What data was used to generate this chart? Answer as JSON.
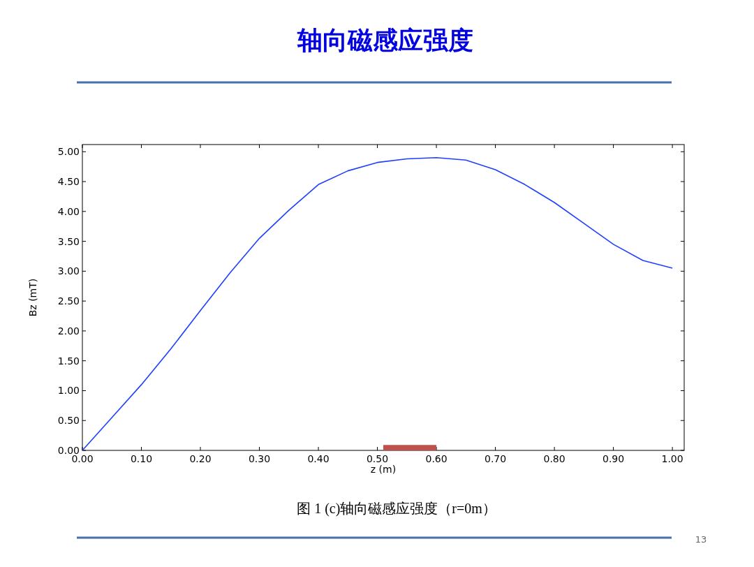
{
  "chart_data": {
    "type": "line",
    "title": "轴向磁感应强度",
    "xlabel": "z (m)",
    "ylabel": "Bz (mT)",
    "annotations": [
      "图 1  (c)轴向磁感应强度（r=0m）",
      "13"
    ],
    "x": [
      0,
      0.05,
      0.1,
      0.15,
      0.2,
      0.25,
      0.3,
      0.35,
      0.4,
      0.45,
      0.5,
      0.55,
      0.6,
      0.65,
      0.7,
      0.75,
      0.8,
      0.85,
      0.9,
      0.95,
      1.0
    ],
    "series": [
      {
        "color": "#1f3fff",
        "values": [
          0,
          0.55,
          1.1,
          1.7,
          2.34,
          2.97,
          3.55,
          4.02,
          4.45,
          4.68,
          4.82,
          4.88,
          4.9,
          4.86,
          4.7,
          4.45,
          4.15,
          3.8,
          3.45,
          3.18,
          3.05
        ]
      },
      {
        "type": "area",
        "color": "#c0504d",
        "x": [
          0.51,
          0.6
        ],
        "values": [
          0.09,
          0.09
        ]
      }
    ],
    "xlim": [
      0,
      1.02
    ],
    "ylim": [
      0,
      5.12
    ],
    "xticks": [
      {
        "value": 0,
        "label": "0.00"
      },
      {
        "value": 0.1,
        "label": "0.10"
      },
      {
        "value": 0.2,
        "label": "0.20"
      },
      {
        "value": 0.3,
        "label": "0.30"
      },
      {
        "value": 0.4,
        "label": "0.40"
      },
      {
        "value": 0.5,
        "label": "0.50"
      },
      {
        "value": 0.6,
        "label": "0.60"
      },
      {
        "value": 0.7,
        "label": "0.70"
      },
      {
        "value": 0.8,
        "label": "0.80"
      },
      {
        "value": 0.9,
        "label": "0.90"
      },
      {
        "value": 1,
        "label": "1.00"
      }
    ],
    "yticks": [
      {
        "value": 0,
        "label": "0.00"
      },
      {
        "value": 0.5,
        "label": "0.50"
      },
      {
        "value": 1,
        "label": "1.00"
      },
      {
        "value": 1.5,
        "label": "1.50"
      },
      {
        "value": 2,
        "label": "2.00"
      },
      {
        "value": 2.5,
        "label": "2.50"
      },
      {
        "value": 3,
        "label": "3.00"
      },
      {
        "value": 3.5,
        "label": "3.50"
      },
      {
        "value": 4,
        "label": "4.00"
      },
      {
        "value": 4.5,
        "label": "4.50"
      },
      {
        "value": 5,
        "label": "5.00"
      }
    ],
    "marker": "none",
    "line_style": "solid"
  }
}
